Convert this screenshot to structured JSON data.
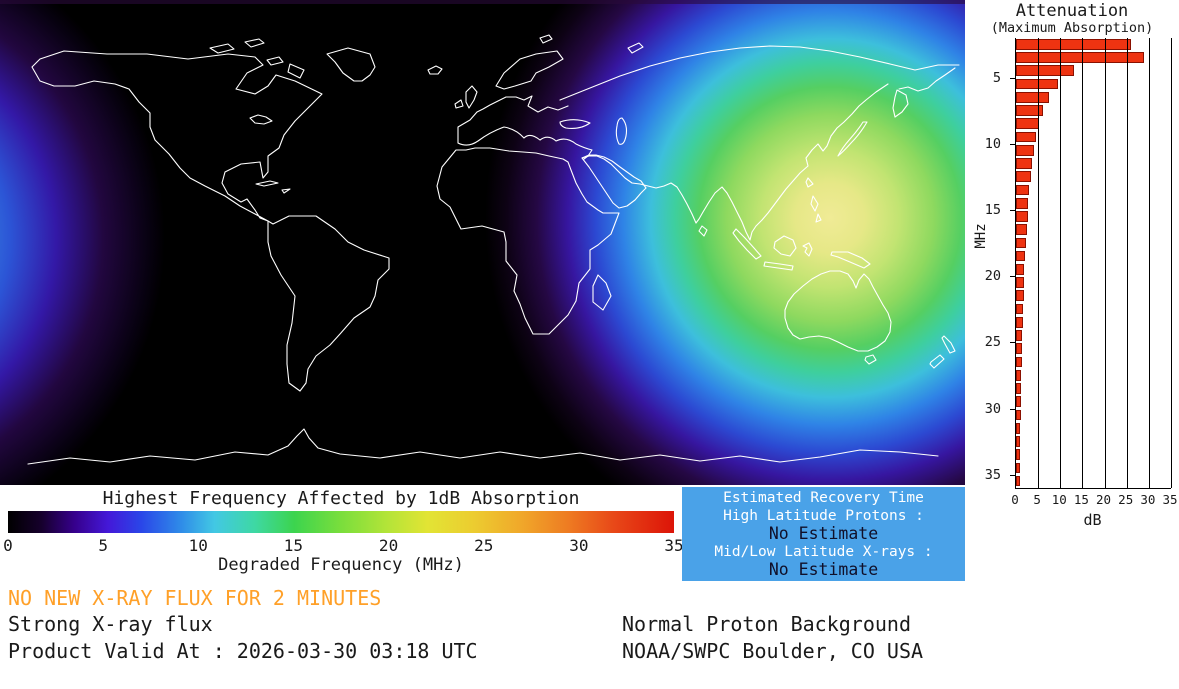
{
  "map": {
    "label": "Global D-Region Absorption Prediction map",
    "background_color": "#000000",
    "coastline_color": "#ffffff",
    "peak_region_color": "#f0eb96"
  },
  "chart_data": [
    {
      "type": "bar",
      "orientation": "horizontal",
      "title": "Attenuation",
      "subtitle": "(Maximum Absorption)",
      "xlabel": "dB",
      "ylabel": "MHz",
      "xlim": [
        0,
        35
      ],
      "ylim": [
        2,
        36
      ],
      "x_ticks": [
        0,
        5,
        10,
        15,
        20,
        25,
        30,
        35
      ],
      "y_ticks": [
        5,
        10,
        15,
        20,
        25,
        30,
        35
      ],
      "grid": true,
      "bar_color": "#ee3311",
      "categories_mhz": [
        2,
        3,
        4,
        5,
        6,
        7,
        8,
        9,
        10,
        11,
        12,
        13,
        14,
        15,
        16,
        17,
        18,
        19,
        20,
        21,
        22,
        23,
        24,
        25,
        26,
        27,
        28,
        29,
        30,
        31,
        32,
        33,
        34,
        35
      ],
      "values_db": [
        26,
        29,
        13,
        9.5,
        7.5,
        6.2,
        5.3,
        4.6,
        4.1,
        3.7,
        3.3,
        3.0,
        2.8,
        2.6,
        2.4,
        2.2,
        2.1,
        1.9,
        1.8,
        1.7,
        1.6,
        1.5,
        1.45,
        1.35,
        1.3,
        1.2,
        1.15,
        1.1,
        1.05,
        1.0,
        0.95,
        0.9,
        0.85,
        0.8
      ]
    },
    {
      "type": "colorbar",
      "title": "Highest Frequency Affected by 1dB Absorption",
      "caption": "Degraded Frequency (MHz)",
      "range": [
        0,
        35
      ],
      "ticks": [
        0,
        5,
        10,
        15,
        20,
        25,
        30,
        35
      ],
      "stops": [
        {
          "pos": 0.0,
          "color": "#000000"
        },
        {
          "pos": 0.05,
          "color": "#16002c"
        },
        {
          "pos": 0.1,
          "color": "#36008c"
        },
        {
          "pos": 0.15,
          "color": "#4418d8"
        },
        {
          "pos": 0.2,
          "color": "#2a46e8"
        },
        {
          "pos": 0.26,
          "color": "#2f8ce8"
        },
        {
          "pos": 0.31,
          "color": "#42c8e4"
        },
        {
          "pos": 0.37,
          "color": "#3ed8a4"
        },
        {
          "pos": 0.43,
          "color": "#3cd44e"
        },
        {
          "pos": 0.5,
          "color": "#7ade3c"
        },
        {
          "pos": 0.57,
          "color": "#b4e438"
        },
        {
          "pos": 0.63,
          "color": "#e2e434"
        },
        {
          "pos": 0.7,
          "color": "#eccc30"
        },
        {
          "pos": 0.77,
          "color": "#f0a82a"
        },
        {
          "pos": 0.84,
          "color": "#ee7c22"
        },
        {
          "pos": 0.91,
          "color": "#e84818"
        },
        {
          "pos": 1.0,
          "color": "#dc1408"
        }
      ]
    }
  ],
  "recovery": {
    "title": "Estimated Recovery Time",
    "bg_color": "#4aa2e8",
    "lines": [
      {
        "label": "High Latitude Protons :",
        "value": "No Estimate"
      },
      {
        "label": "Mid/Low Latitude X-rays :",
        "value": "No Estimate"
      }
    ]
  },
  "footer": {
    "alert": "NO NEW X-RAY FLUX FOR 2 MINUTES",
    "alert_color": "#ffa028",
    "xray_status": "Strong X-ray flux",
    "valid_line": "Product Valid At : 2026-03-30 03:18 UTC",
    "proton_status": "Normal Proton Background",
    "source": "NOAA/SWPC Boulder, CO USA"
  }
}
